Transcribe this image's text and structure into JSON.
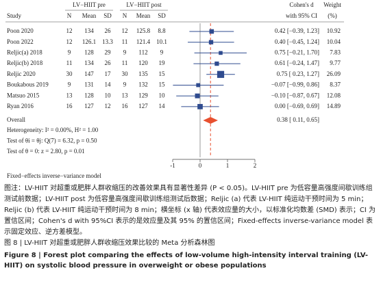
{
  "chart_data": {
    "type": "forest",
    "group_labels": [
      "LV−HIIT pre",
      "LV−HIIT post"
    ],
    "columns": [
      "Study",
      "N",
      "Mean",
      "SD",
      "N",
      "Mean",
      "SD"
    ],
    "effect_header": [
      "Cohen's d",
      "with 95% CI"
    ],
    "weight_header": [
      "Weight",
      "(%)"
    ],
    "studies": [
      {
        "name": "Poon 2020",
        "pre": [
          12,
          134,
          26
        ],
        "post": [
          12,
          125.8,
          8.8
        ],
        "d": 0.42,
        "lo": -0.39,
        "hi": 1.23,
        "label": "0.42 [−0.39, 1.23]",
        "weight": 10.92
      },
      {
        "name": "Poon 2022",
        "pre": [
          12,
          126.1,
          13.3
        ],
        "post": [
          11,
          121.4,
          10.1
        ],
        "d": 0.4,
        "lo": -0.45,
        "hi": 1.24,
        "label": "0.40 [−0.45, 1.24]",
        "weight": 10.04
      },
      {
        "name": "Reljic(a) 2018",
        "pre": [
          9,
          128,
          29
        ],
        "post": [
          9,
          112,
          9
        ],
        "d": 0.75,
        "lo": -0.21,
        "hi": 1.7,
        "label": "0.75 [−0.21, 1.70]",
        "weight": 7.83
      },
      {
        "name": "Reljic(b) 2018",
        "pre": [
          11,
          134,
          26
        ],
        "post": [
          11,
          120,
          19
        ],
        "d": 0.61,
        "lo": -0.24,
        "hi": 1.47,
        "label": "0.61 [−0.24, 1.47]",
        "weight": 9.77
      },
      {
        "name": "Reljic 2020",
        "pre": [
          30,
          147,
          17
        ],
        "post": [
          30,
          135,
          15
        ],
        "d": 0.75,
        "lo": 0.23,
        "hi": 1.27,
        "label": "0.75 [ 0.23, 1.27]",
        "weight": 26.09
      },
      {
        "name": "Boukabous 2019",
        "pre": [
          9,
          131,
          14
        ],
        "post": [
          9,
          132,
          15
        ],
        "d": -0.07,
        "lo": -0.99,
        "hi": 0.86,
        "label": "−0.07 [−0.99, 0.86]",
        "weight": 8.37
      },
      {
        "name": "Matsuo 2015",
        "pre": [
          13,
          128,
          10
        ],
        "post": [
          13,
          129,
          10
        ],
        "d": -0.1,
        "lo": -0.87,
        "hi": 0.67,
        "label": "−0.10 [−0.87, 0.67]",
        "weight": 12.08
      },
      {
        "name": "Ryan 2016",
        "pre": [
          16,
          127,
          12
        ],
        "post": [
          16,
          127,
          14
        ],
        "d": 0.0,
        "lo": -0.69,
        "hi": 0.69,
        "label": "0.00 [−0.69, 0.69]",
        "weight": 14.89
      }
    ],
    "overall": {
      "name": "Overall",
      "d": 0.38,
      "lo": 0.11,
      "hi": 0.65,
      "label": "0.38 [ 0.11, 0.65]"
    },
    "notes": [
      "Heterogeneity: I² = 0.00%, H² = 1.00",
      "Test of θi = θj: Q(7) = 6.32, p = 0.50",
      "Test of θ = 0: z = 2.80, p = 0.01"
    ],
    "model": "Fixed−effects inverse−variance model",
    "xlim": [
      -1,
      2
    ],
    "xticks": [
      -1,
      0,
      1,
      2
    ],
    "marker_color": "#2f4b8f",
    "overall_color": "#e8502f",
    "ref_color": "#e8502f"
  },
  "caption": {
    "note": "图注：LV-HIIT 对超重或肥胖人群收缩压的改善效果具有显著性差异 (P < 0.05)。LV-HIIT pre 为低容量高强度间歇训练组测试前数据；LV-HIIT post 为低容量高强度间歇训练组测试后数据；Reljic (a) 代表 LV-HIIT 纯运动干预时间为 5 min；Reljic (b) 代表 LV-HIIT 纯运动干预时间为 8 min；横坐标 (x 轴) 代表效应量的大小，以标准化均数差 (SMD) 表示；CI 为置信区间；Cohen's d with 95%CI 表示的是效应量及其 95% 的置信区间；Fixed-effects inverse-variance model 表示固定效应、逆方差模型。",
    "title_cn": "图 8 | LV-HIIT 对超重或肥胖人群收缩压效果比较的 Meta 分析森林图",
    "title_en": "Figure 8 | Forest plot comparing the effects of low-volume high-intensity interval training (LV-HIIT) on systolic blood pressure in overweight or obese populations"
  }
}
